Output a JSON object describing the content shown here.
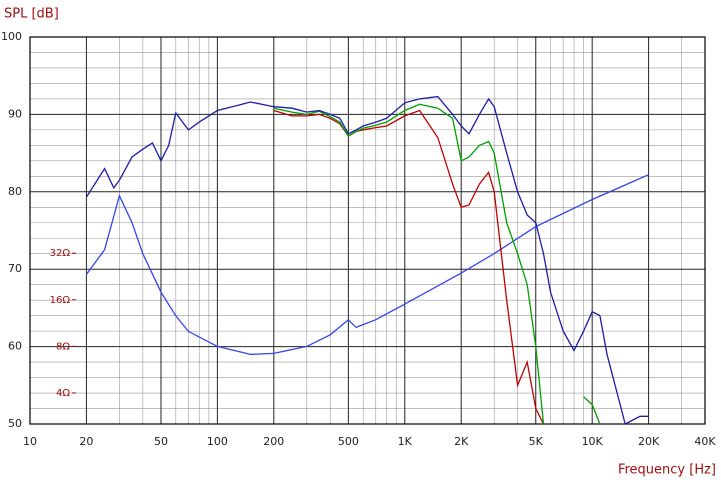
{
  "chart_data": {
    "type": "line",
    "y_axis_label": "SPL [dB]",
    "x_axis_label": "Frequency [Hz]",
    "xscale": "log",
    "xlim": [
      10,
      40000
    ],
    "xticks": [
      10,
      20,
      50,
      100,
      200,
      500,
      {
        "value": 1000,
        "label": "1K"
      },
      {
        "value": 2000,
        "label": "2K"
      },
      {
        "value": 5000,
        "label": "5K"
      },
      {
        "value": 10000,
        "label": "10K"
      },
      {
        "value": 20000,
        "label": "20K"
      },
      {
        "value": 40000,
        "label": "40K"
      }
    ],
    "x_minor_ticks": [
      30,
      40,
      60,
      70,
      80,
      90,
      300,
      400,
      600,
      700,
      800,
      900,
      3000,
      4000,
      6000,
      7000,
      8000,
      9000,
      30000
    ],
    "ylim": [
      50,
      100
    ],
    "yticks": [
      50,
      60,
      70,
      80,
      90,
      100
    ],
    "y_minor_ticks": [
      52,
      54,
      56,
      58,
      62,
      64,
      66,
      68,
      72,
      74,
      76,
      78,
      82,
      84,
      86,
      88,
      92,
      94,
      96,
      98
    ],
    "y2scale": "log",
    "y2lim": [
      2.52,
      798
    ],
    "y2ticks": [
      {
        "value": 4,
        "label": "4Ω"
      },
      {
        "value": 8,
        "label": "8Ω"
      },
      {
        "value": 16,
        "label": "16Ω"
      },
      {
        "value": 32,
        "label": "32Ω"
      }
    ],
    "grid": true,
    "series": [
      {
        "color": "#1c1ca8",
        "x": [
          20,
          25,
          28,
          30,
          35,
          40,
          45,
          50,
          55,
          60,
          70,
          80,
          100,
          130,
          150,
          200,
          250,
          300,
          350,
          400,
          450,
          500,
          550,
          600,
          700,
          800,
          1000,
          1200,
          1500,
          1800,
          2000,
          2200,
          2500,
          2800,
          3000,
          3500,
          4000,
          4500,
          5000,
          5500,
          6000,
          7000,
          8000,
          9000,
          10000,
          11000,
          12000,
          15000,
          18000,
          20000
        ],
        "values": [
          79.3,
          83,
          80.5,
          81.5,
          84.5,
          85.5,
          86.3,
          84,
          86,
          90.2,
          88,
          89,
          90.5,
          91.2,
          91.6,
          91,
          90.8,
          90.3,
          90.5,
          90,
          89.5,
          87.5,
          88,
          88.5,
          89,
          89.5,
          91.5,
          92,
          92.3,
          90,
          88.5,
          87.5,
          90,
          92,
          91,
          85,
          80,
          77,
          76,
          72,
          67,
          62,
          59.5,
          62,
          64.5,
          64,
          59,
          50,
          51,
          51
        ]
      },
      {
        "color": "#00a000",
        "x": [
          200,
          250,
          300,
          350,
          400,
          450,
          500,
          550,
          600,
          700,
          800,
          1000,
          1200,
          1500,
          1800,
          2000,
          2200,
          2500,
          2800,
          3000,
          3500,
          4000,
          4500,
          5000,
          5500,
          8000,
          9000,
          10000,
          11000
        ],
        "values": [
          90.8,
          90.3,
          90,
          90.4,
          89.7,
          89,
          87.2,
          87.8,
          88.2,
          88.6,
          89,
          90.5,
          91.3,
          90.8,
          89.5,
          84,
          84.5,
          86,
          86.5,
          85,
          76,
          72,
          68,
          60,
          50,
          null,
          53.5,
          52.5,
          50
        ]
      },
      {
        "color": "#c00000",
        "x": [
          200,
          250,
          300,
          350,
          400,
          450,
          500,
          550,
          600,
          700,
          800,
          1000,
          1200,
          1500,
          1800,
          2000,
          2200,
          2500,
          2800,
          3000,
          3500,
          4000,
          4500,
          5000,
          5500
        ],
        "values": [
          90.5,
          89.8,
          89.8,
          90,
          89.5,
          88.8,
          87.2,
          87.8,
          88,
          88.3,
          88.5,
          89.8,
          90.5,
          87,
          81,
          78,
          78.3,
          81,
          82.5,
          80,
          66,
          55,
          58,
          52,
          50
        ]
      },
      {
        "color": "#3344ee",
        "axis": "y2",
        "x": [
          20,
          25,
          30,
          35,
          40,
          50,
          60,
          70,
          100,
          150,
          200,
          300,
          400,
          500,
          550,
          700,
          1000,
          2000,
          3000,
          5000,
          10000,
          20000
        ],
        "values": [
          23.3,
          33.7,
          75.3,
          50.4,
          31.8,
          17.9,
          12.6,
          10,
          8,
          7.1,
          7.2,
          8,
          9.5,
          11.9,
          10.6,
          11.9,
          15,
          23.8,
          31.8,
          47.5,
          71.1,
          102.8
        ]
      }
    ]
  }
}
